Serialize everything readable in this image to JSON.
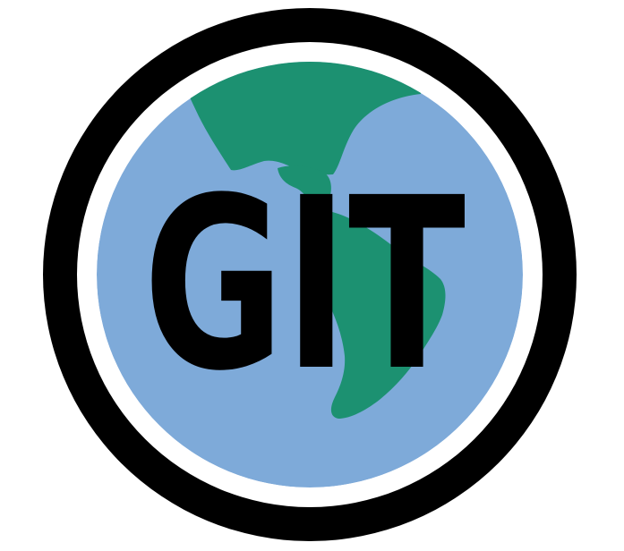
{
  "logo": {
    "wordmark": "GIT",
    "icon": "globe-icon",
    "colors": {
      "ring": "#000000",
      "gap": "#ffffff",
      "ocean": "#7eaad9",
      "land": "#1c9171",
      "text": "#000000"
    }
  }
}
